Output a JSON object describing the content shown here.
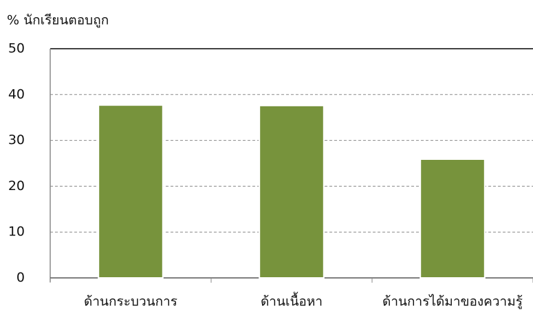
{
  "chart_data": {
    "type": "bar",
    "y_label": "% นักเรียนตอบถูก",
    "categories": [
      "ด้านกระบวนการ",
      "ด้านเนื้อหา",
      "ด้านการได้มาของความรู้"
    ],
    "values": [
      37.7,
      37.6,
      25.9
    ],
    "color": "#77933c",
    "ylim": [
      0,
      50
    ],
    "yticks": [
      0,
      10,
      20,
      30,
      40,
      50
    ],
    "grid": true
  }
}
